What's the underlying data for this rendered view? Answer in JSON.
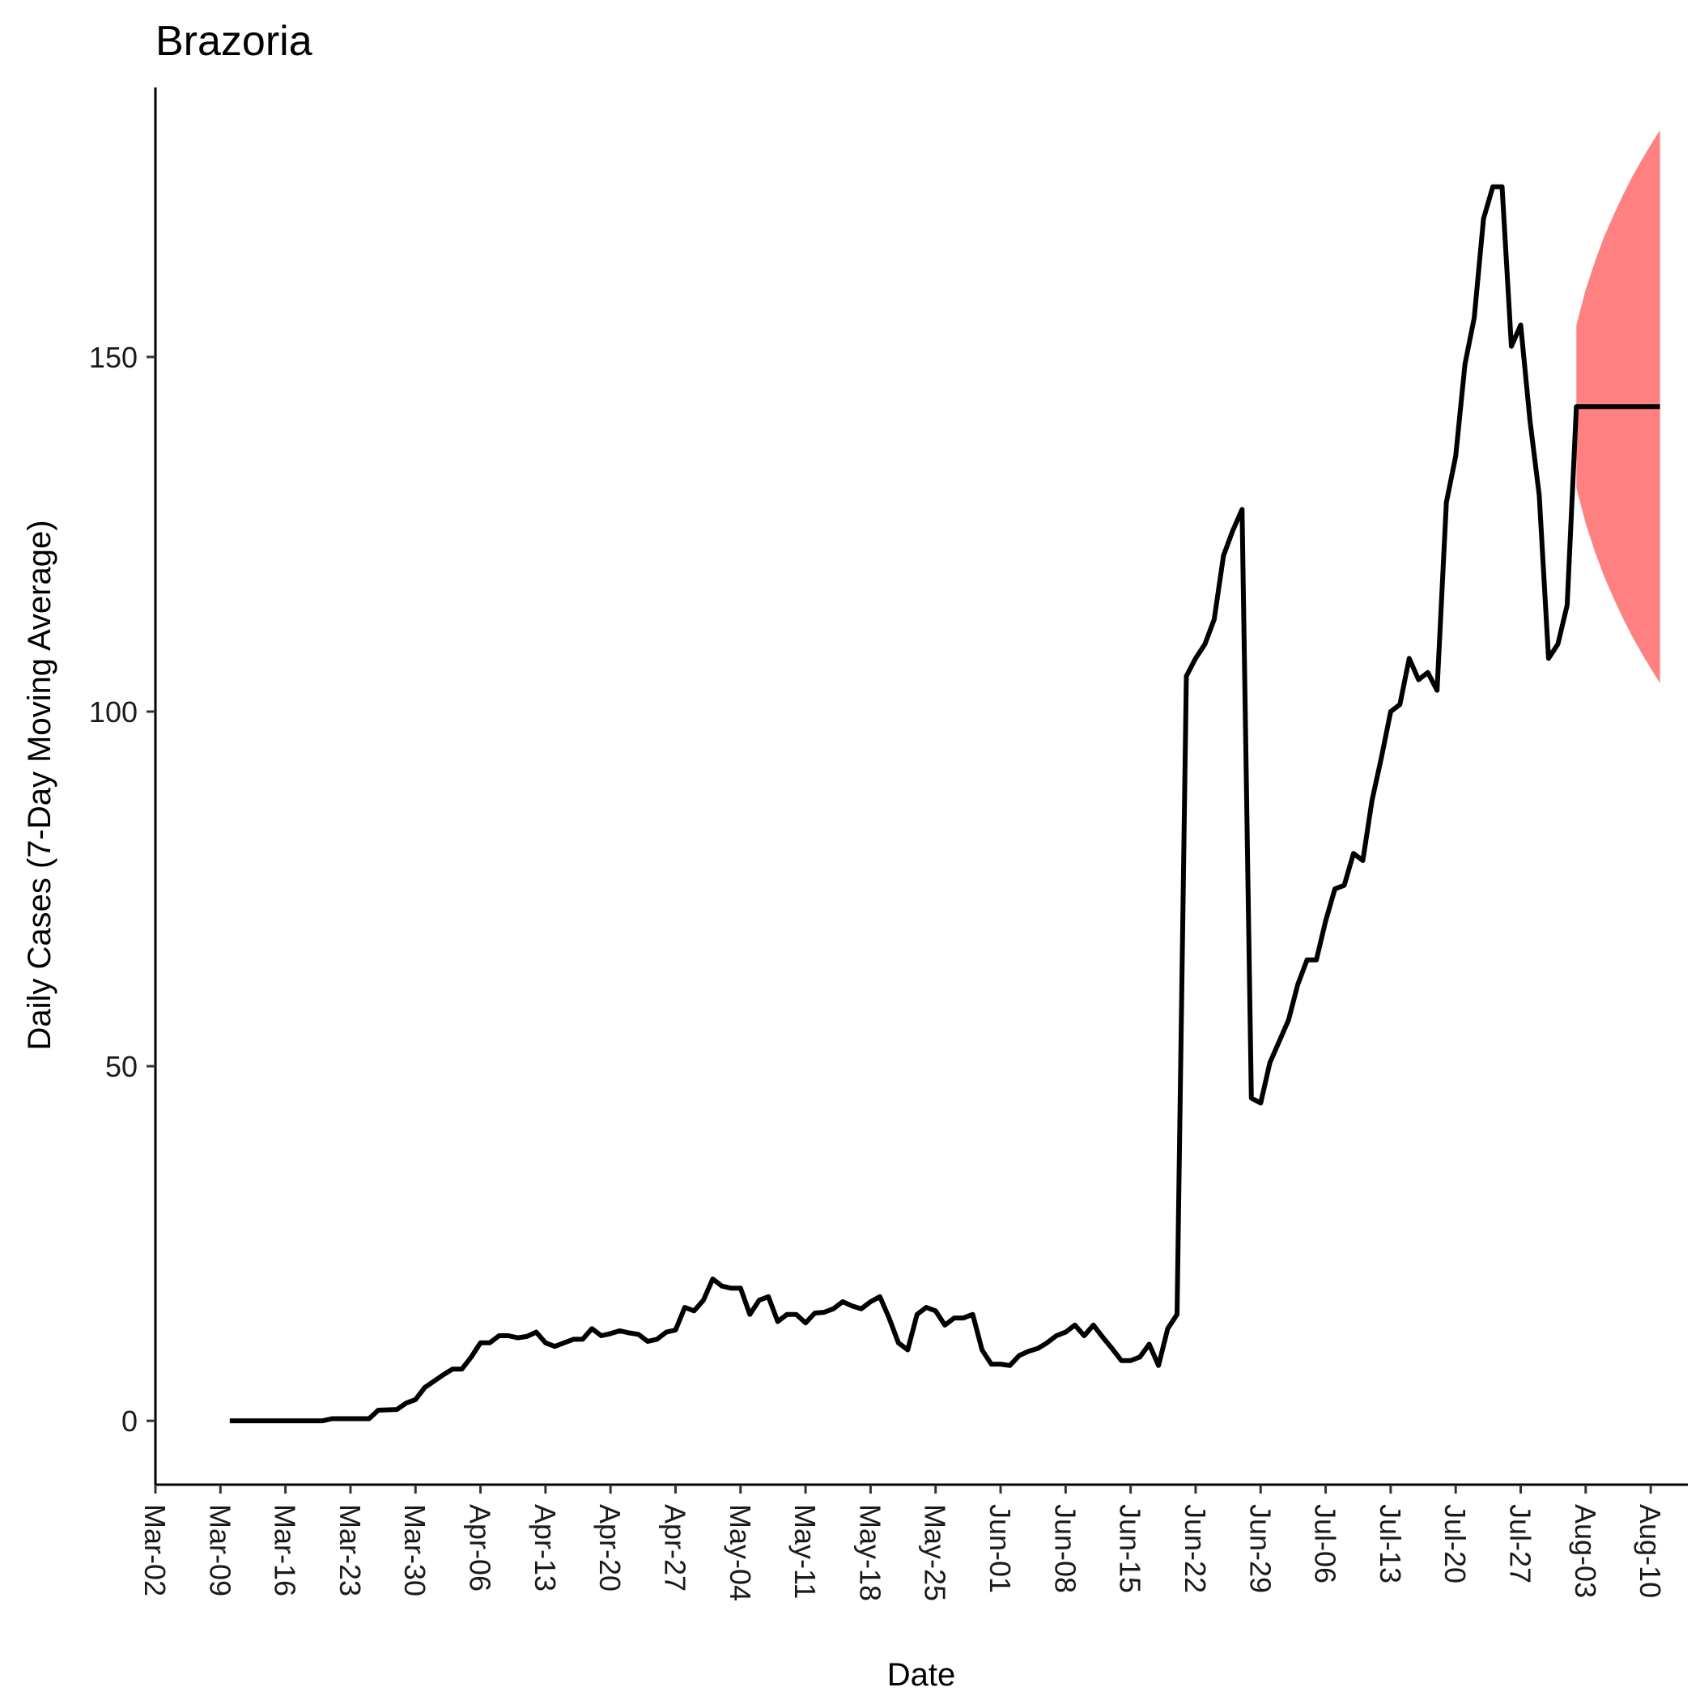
{
  "chart_data": {
    "type": "line",
    "title": "Brazoria",
    "xlabel": "Date",
    "ylabel": "Daily Cases (7-Day Moving Average)",
    "ylim": [
      -9,
      188
    ],
    "xlim": [
      "2020-03-02",
      "2020-08-14"
    ],
    "grid": false,
    "legend": "none",
    "colors": {
      "line": "#000000",
      "band": "#FF8080"
    },
    "y_ticks": [
      0,
      50,
      100,
      150
    ],
    "y_tick_labels": [
      "0",
      "50",
      "100",
      "150"
    ],
    "x_ticks": [
      "2020-03-02",
      "2020-03-09",
      "2020-03-16",
      "2020-03-23",
      "2020-03-30",
      "2020-04-06",
      "2020-04-13",
      "2020-04-20",
      "2020-04-27",
      "2020-05-04",
      "2020-05-11",
      "2020-05-18",
      "2020-05-25",
      "2020-06-01",
      "2020-06-08",
      "2020-06-15",
      "2020-06-22",
      "2020-06-29",
      "2020-07-06",
      "2020-07-13",
      "2020-07-20",
      "2020-07-27",
      "2020-08-03",
      "2020-08-10"
    ],
    "x_tick_labels": [
      "Mar-02",
      "Mar-09",
      "Mar-16",
      "Mar-23",
      "Mar-30",
      "Apr-06",
      "Apr-13",
      "Apr-20",
      "Apr-27",
      "May-04",
      "May-11",
      "May-18",
      "May-25",
      "Jun-01",
      "Jun-08",
      "Jun-15",
      "Jun-22",
      "Jun-29",
      "Jul-06",
      "Jul-13",
      "Jul-20",
      "Jul-27",
      "Aug-03",
      "Aug-10"
    ],
    "series": [
      {
        "values": [
          [
            "2020-03-10",
            0
          ],
          [
            "2020-03-20",
            0
          ],
          [
            "2020-03-21",
            0.3
          ],
          [
            "2020-03-25",
            0.3
          ],
          [
            "2020-03-26",
            1.5
          ],
          [
            "2020-03-28",
            1.6
          ],
          [
            "2020-03-29",
            2.5
          ],
          [
            "2020-03-30",
            3
          ],
          [
            "2020-03-31",
            4.7
          ],
          [
            "2020-04-02",
            6.5
          ],
          [
            "2020-04-03",
            7.3
          ],
          [
            "2020-04-04",
            7.3
          ],
          [
            "2020-04-05",
            9
          ],
          [
            "2020-04-06",
            11
          ],
          [
            "2020-04-07",
            11
          ],
          [
            "2020-04-08",
            12
          ],
          [
            "2020-04-09",
            12
          ],
          [
            "2020-04-10",
            11.7
          ],
          [
            "2020-04-11",
            11.9
          ],
          [
            "2020-04-12",
            12.5
          ],
          [
            "2020-04-13",
            11
          ],
          [
            "2020-04-14",
            10.5
          ],
          [
            "2020-04-15",
            11
          ],
          [
            "2020-04-16",
            11.5
          ],
          [
            "2020-04-17",
            11.5
          ],
          [
            "2020-04-18",
            13
          ],
          [
            "2020-04-19",
            12
          ],
          [
            "2020-04-20",
            12.3
          ],
          [
            "2020-04-21",
            12.7
          ],
          [
            "2020-04-22",
            12.4
          ],
          [
            "2020-04-23",
            12.2
          ],
          [
            "2020-04-24",
            11.2
          ],
          [
            "2020-04-25",
            11.5
          ],
          [
            "2020-04-26",
            12.5
          ],
          [
            "2020-04-27",
            12.8
          ],
          [
            "2020-04-28",
            16
          ],
          [
            "2020-04-29",
            15.5
          ],
          [
            "2020-04-30",
            17
          ],
          [
            "2020-05-01",
            20
          ],
          [
            "2020-05-02",
            19
          ],
          [
            "2020-05-03",
            18.7
          ],
          [
            "2020-05-04",
            18.7
          ],
          [
            "2020-05-05",
            15
          ],
          [
            "2020-05-06",
            17
          ],
          [
            "2020-05-07",
            17.5
          ],
          [
            "2020-05-08",
            14
          ],
          [
            "2020-05-09",
            15
          ],
          [
            "2020-05-10",
            15
          ],
          [
            "2020-05-11",
            13.8
          ],
          [
            "2020-05-12",
            15.2
          ],
          [
            "2020-05-13",
            15.3
          ],
          [
            "2020-05-14",
            15.8
          ],
          [
            "2020-05-15",
            16.8
          ],
          [
            "2020-05-16",
            16.2
          ],
          [
            "2020-05-17",
            15.8
          ],
          [
            "2020-05-18",
            16.8
          ],
          [
            "2020-05-19",
            17.5
          ],
          [
            "2020-05-20",
            14.5
          ],
          [
            "2020-05-21",
            11
          ],
          [
            "2020-05-22",
            10
          ],
          [
            "2020-05-23",
            15
          ],
          [
            "2020-05-24",
            16
          ],
          [
            "2020-05-25",
            15.5
          ],
          [
            "2020-05-26",
            13.5
          ],
          [
            "2020-05-27",
            14.5
          ],
          [
            "2020-05-28",
            14.5
          ],
          [
            "2020-05-29",
            15
          ],
          [
            "2020-05-30",
            10
          ],
          [
            "2020-05-31",
            8
          ],
          [
            "2020-06-01",
            8
          ],
          [
            "2020-06-02",
            7.8
          ],
          [
            "2020-06-03",
            9.2
          ],
          [
            "2020-06-04",
            9.8
          ],
          [
            "2020-06-05",
            10.2
          ],
          [
            "2020-06-06",
            11
          ],
          [
            "2020-06-07",
            12
          ],
          [
            "2020-06-08",
            12.5
          ],
          [
            "2020-06-09",
            13.5
          ],
          [
            "2020-06-10",
            12
          ],
          [
            "2020-06-11",
            13.5
          ],
          [
            "2020-06-12",
            11.8
          ],
          [
            "2020-06-13",
            10.2
          ],
          [
            "2020-06-14",
            8.5
          ],
          [
            "2020-06-15",
            8.5
          ],
          [
            "2020-06-16",
            9
          ],
          [
            "2020-06-17",
            10.8
          ],
          [
            "2020-06-18",
            7.8
          ],
          [
            "2020-06-19",
            13
          ],
          [
            "2020-06-20",
            15
          ],
          [
            "2020-06-21",
            105
          ],
          [
            "2020-06-22",
            107.5
          ],
          [
            "2020-06-23",
            109.5
          ],
          [
            "2020-06-24",
            113
          ],
          [
            "2020-06-25",
            122
          ],
          [
            "2020-06-26",
            125.5
          ],
          [
            "2020-06-27",
            128.5
          ],
          [
            "2020-06-28",
            45.5
          ],
          [
            "2020-06-29",
            44.8
          ],
          [
            "2020-06-30",
            50.5
          ],
          [
            "2020-07-01",
            53.5
          ],
          [
            "2020-07-02",
            56.5
          ],
          [
            "2020-07-03",
            61.5
          ],
          [
            "2020-07-04",
            65
          ],
          [
            "2020-07-05",
            65
          ],
          [
            "2020-07-06",
            70.5
          ],
          [
            "2020-07-07",
            75
          ],
          [
            "2020-07-08",
            75.5
          ],
          [
            "2020-07-09",
            80
          ],
          [
            "2020-07-10",
            79
          ],
          [
            "2020-07-11",
            87.5
          ],
          [
            "2020-07-12",
            93.5
          ],
          [
            "2020-07-13",
            100
          ],
          [
            "2020-07-14",
            101
          ],
          [
            "2020-07-15",
            107.5
          ],
          [
            "2020-07-16",
            104.5
          ],
          [
            "2020-07-17",
            105.5
          ],
          [
            "2020-07-18",
            103
          ],
          [
            "2020-07-19",
            129.5
          ],
          [
            "2020-07-20",
            136
          ],
          [
            "2020-07-21",
            149
          ],
          [
            "2020-07-22",
            155.5
          ],
          [
            "2020-07-23",
            169.5
          ],
          [
            "2020-07-24",
            174
          ],
          [
            "2020-07-25",
            174
          ],
          [
            "2020-07-26",
            151.5
          ],
          [
            "2020-07-27",
            154.5
          ],
          [
            "2020-07-28",
            141
          ],
          [
            "2020-07-29",
            130.5
          ],
          [
            "2020-07-30",
            107.5
          ],
          [
            "2020-07-31",
            109.5
          ],
          [
            "2020-08-01",
            115
          ],
          [
            "2020-08-02",
            143
          ],
          [
            "2020-08-11",
            143
          ]
        ]
      }
    ],
    "band": {
      "x": [
        "2020-08-02",
        "2020-08-03",
        "2020-08-04",
        "2020-08-05",
        "2020-08-06",
        "2020-08-07",
        "2020-08-08",
        "2020-08-09",
        "2020-08-10",
        "2020-08-11"
      ],
      "upper": [
        154.5,
        159.5,
        163.5,
        167,
        170,
        172.8,
        175.4,
        177.7,
        179.9,
        182
      ],
      "lower": [
        131.5,
        126.5,
        122.5,
        119,
        116,
        113.2,
        110.6,
        108.3,
        106.1,
        104
      ]
    }
  }
}
